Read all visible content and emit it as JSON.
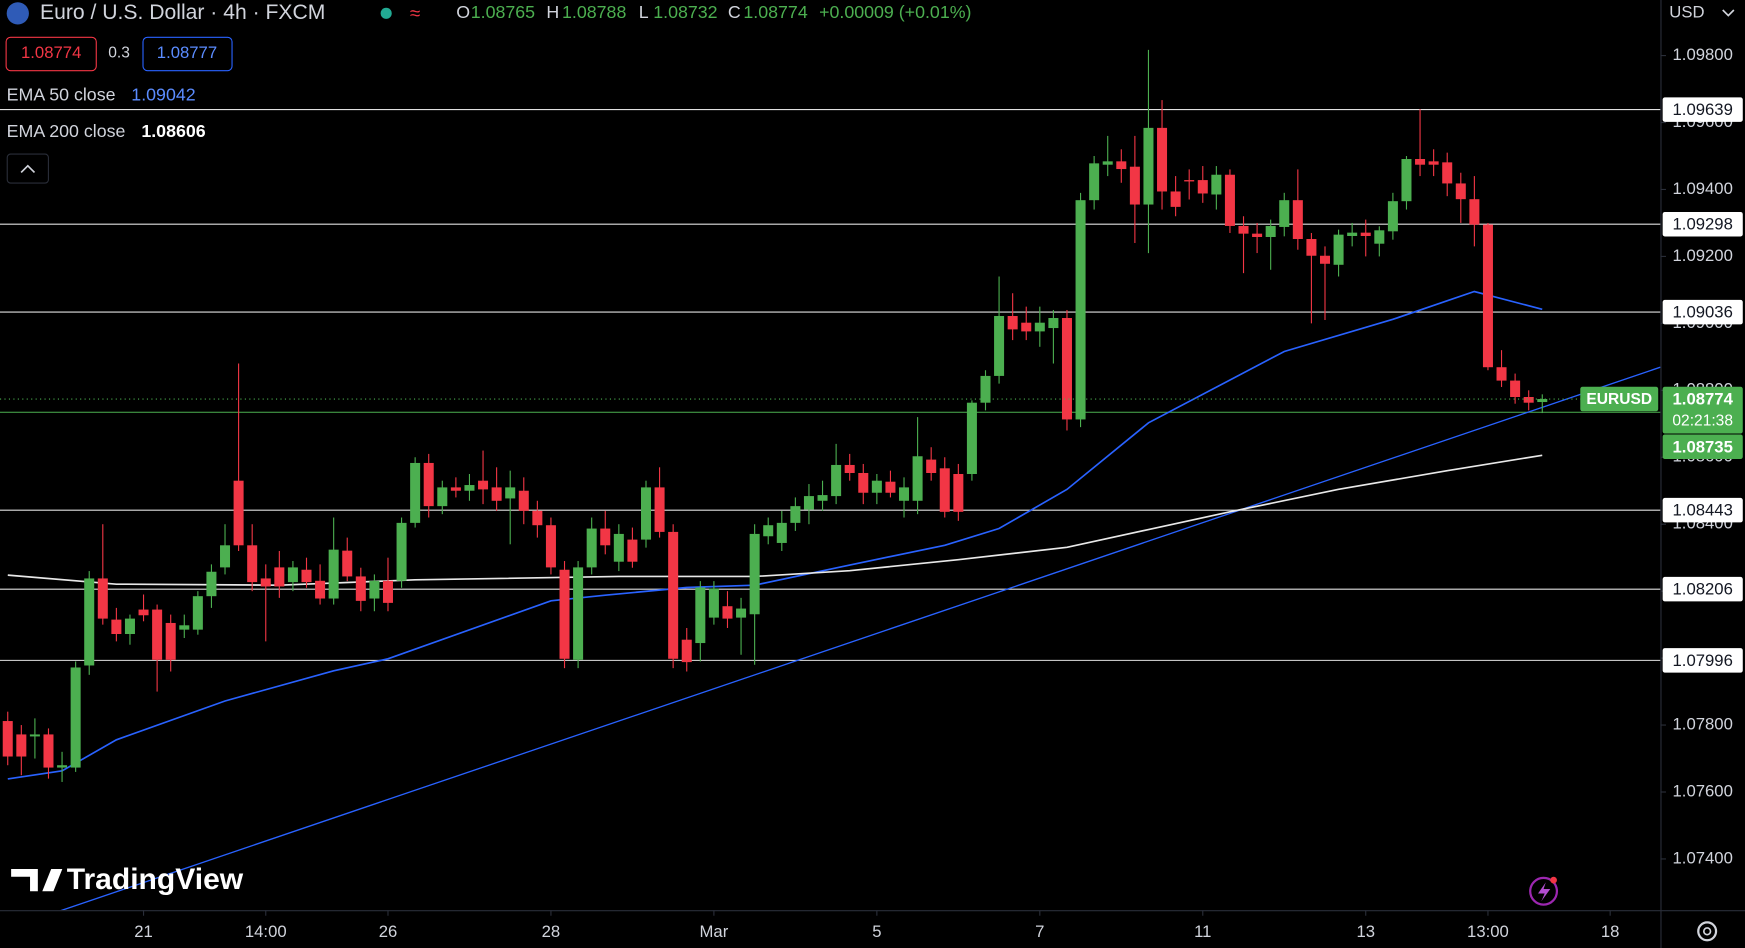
{
  "chart_data": {
    "type": "candlestick",
    "title": "Euro / U.S. Dollar · 4h · FXCM",
    "ohlc_labels": [
      "O",
      "H",
      "L",
      "C"
    ],
    "change": "+0.00009 (+0.01%)",
    "spread": 0.3,
    "ask": 1.08777,
    "currency": "USD",
    "symbol": "EURUSD",
    "countdown": "02:21:38",
    "brand": "TradingView",
    "up_color": "#4caf50",
    "down_color": "#f23645",
    "candles": [
      [
        1.07812,
        1.0784,
        1.0768,
        1.07706
      ],
      [
        1.07772,
        1.078,
        1.0765,
        1.07706
      ],
      [
        1.07766,
        1.0782,
        1.077,
        1.07772
      ],
      [
        1.07772,
        1.0779,
        1.0764,
        1.07673
      ],
      [
        1.07673,
        1.0772,
        1.0763,
        1.0768
      ],
      [
        1.07673,
        1.0799,
        1.0766,
        1.07972
      ],
      [
        1.07978,
        1.0826,
        1.0795,
        1.08238
      ],
      [
        1.08238,
        1.084,
        1.081,
        1.08118
      ],
      [
        1.08115,
        1.0815,
        1.0805,
        1.08072
      ],
      [
        1.08072,
        1.0813,
        1.0804,
        1.08118
      ],
      [
        1.08145,
        1.0819,
        1.0811,
        1.08128
      ],
      [
        1.08145,
        1.0816,
        1.079,
        1.07995
      ],
      [
        1.08105,
        1.0813,
        1.0796,
        1.07995
      ],
      [
        1.08085,
        1.0813,
        1.0806,
        1.08098
      ],
      [
        1.08085,
        1.082,
        1.0807,
        1.08185
      ],
      [
        1.08185,
        1.0828,
        1.0815,
        1.08258
      ],
      [
        1.08271,
        1.084,
        1.0825,
        1.08337
      ],
      [
        1.0853,
        1.0888,
        1.0832,
        1.08337
      ],
      [
        1.08337,
        1.084,
        1.082,
        1.08227
      ],
      [
        1.08238,
        1.0828,
        1.0805,
        1.08214
      ],
      [
        1.08271,
        1.0832,
        1.0818,
        1.08214
      ],
      [
        1.08227,
        1.0829,
        1.082,
        1.08271
      ],
      [
        1.08264,
        1.083,
        1.0821,
        1.08227
      ],
      [
        1.08231,
        1.0828,
        1.0816,
        1.08178
      ],
      [
        1.08178,
        1.0842,
        1.0816,
        1.08324
      ],
      [
        1.08321,
        1.0836,
        1.0823,
        1.08244
      ],
      [
        1.08244,
        1.0827,
        1.0814,
        1.08171
      ],
      [
        1.08178,
        1.0825,
        1.0814,
        1.08231
      ],
      [
        1.08231,
        1.083,
        1.0814,
        1.08165
      ],
      [
        1.08231,
        1.0842,
        1.0821,
        1.08404
      ],
      [
        1.08404,
        1.086,
        1.0839,
        1.08583
      ],
      [
        1.08583,
        1.0861,
        1.0842,
        1.08454
      ],
      [
        1.08454,
        1.0853,
        1.0843,
        1.0851
      ],
      [
        1.0851,
        1.0854,
        1.0848,
        1.085
      ],
      [
        1.085,
        1.0855,
        1.0847,
        1.08517
      ],
      [
        1.0853,
        1.0862,
        1.0846,
        1.08504
      ],
      [
        1.0851,
        1.0857,
        1.0844,
        1.0847
      ],
      [
        1.08477,
        1.0856,
        1.0834,
        1.0851
      ],
      [
        1.085,
        1.0854,
        1.084,
        1.0844
      ],
      [
        1.0844,
        1.0847,
        1.0836,
        1.08397
      ],
      [
        1.08397,
        1.0842,
        1.0825,
        1.08271
      ],
      [
        1.08264,
        1.0829,
        1.0797,
        1.07998
      ],
      [
        1.07995,
        1.0829,
        1.0797,
        1.08271
      ],
      [
        1.08271,
        1.0842,
        1.0825,
        1.08387
      ],
      [
        1.08387,
        1.0844,
        1.0831,
        1.08337
      ],
      [
        1.08288,
        1.084,
        1.0826,
        1.08371
      ],
      [
        1.08354,
        1.0839,
        1.0827,
        1.08288
      ],
      [
        1.08354,
        1.0853,
        1.0833,
        1.0851
      ],
      [
        1.0851,
        1.0857,
        1.0836,
        1.08377
      ],
      [
        1.08377,
        1.084,
        1.0797,
        1.07998
      ],
      [
        1.08055,
        1.0809,
        1.0796,
        1.07988
      ],
      [
        1.08045,
        1.0823,
        1.0799,
        1.08211
      ],
      [
        1.08121,
        1.0823,
        1.081,
        1.08208
      ],
      [
        1.08155,
        1.082,
        1.0809,
        1.08118
      ],
      [
        1.08121,
        1.0818,
        1.0801,
        1.08148
      ],
      [
        1.08131,
        1.084,
        1.0798,
        1.08371
      ],
      [
        1.08364,
        1.0842,
        1.0834,
        1.08397
      ],
      [
        1.08344,
        1.0844,
        1.0832,
        1.08404
      ],
      [
        1.08404,
        1.0848,
        1.0838,
        1.08454
      ],
      [
        1.08444,
        1.0852,
        1.084,
        1.08484
      ],
      [
        1.0847,
        1.0853,
        1.0844,
        1.08487
      ],
      [
        1.08484,
        1.0864,
        1.0846,
        1.08577
      ],
      [
        1.08577,
        1.0861,
        1.0853,
        1.08553
      ],
      [
        1.08553,
        1.0858,
        1.0846,
        1.08494
      ],
      [
        1.08494,
        1.0855,
        1.0846,
        1.0853
      ],
      [
        1.08527,
        1.0856,
        1.0848,
        1.08494
      ],
      [
        1.0847,
        1.0854,
        1.0842,
        1.0851
      ],
      [
        1.0847,
        1.0872,
        1.0843,
        1.08603
      ],
      [
        1.08593,
        1.0863,
        1.0853,
        1.08553
      ],
      [
        1.08567,
        1.086,
        1.0842,
        1.08437
      ],
      [
        1.0855,
        1.0858,
        1.0841,
        1.08437
      ],
      [
        1.0855,
        1.0877,
        1.0853,
        1.08763
      ],
      [
        1.08763,
        1.0886,
        1.0874,
        1.08843
      ],
      [
        1.08843,
        1.0914,
        1.0882,
        1.09022
      ],
      [
        1.09022,
        1.0909,
        1.0895,
        1.08982
      ],
      [
        1.09002,
        1.0905,
        1.0895,
        1.08976
      ],
      [
        1.08976,
        1.0905,
        1.0893,
        1.09002
      ],
      [
        1.08986,
        1.0904,
        1.0888,
        1.09016
      ],
      [
        1.09016,
        1.0904,
        1.0868,
        1.08713
      ],
      [
        1.08713,
        1.0939,
        1.0869,
        1.09368
      ],
      [
        1.09368,
        1.095,
        1.0934,
        1.09478
      ],
      [
        1.09474,
        1.0956,
        1.0944,
        1.09484
      ],
      [
        1.09484,
        1.0952,
        1.0942,
        1.09461
      ],
      [
        1.09468,
        1.0956,
        1.0924,
        1.09355
      ],
      [
        1.09355,
        1.09817,
        1.0921,
        1.09584
      ],
      [
        1.09584,
        1.09667,
        1.0934,
        1.09394
      ],
      [
        1.09394,
        1.0944,
        1.0932,
        1.09348
      ],
      [
        1.09428,
        1.0946,
        1.0937,
        1.09424
      ],
      [
        1.09428,
        1.0947,
        1.0936,
        1.09388
      ],
      [
        1.09385,
        1.0947,
        1.0934,
        1.09444
      ],
      [
        1.09444,
        1.0946,
        1.0927,
        1.09291
      ],
      [
        1.09291,
        1.0932,
        1.0915,
        1.09268
      ],
      [
        1.09268,
        1.093,
        1.0921,
        1.09258
      ],
      [
        1.09258,
        1.0931,
        1.0916,
        1.09291
      ],
      [
        1.09288,
        1.0939,
        1.0926,
        1.09368
      ],
      [
        1.09368,
        1.0946,
        1.0922,
        1.09252
      ],
      [
        1.09252,
        1.0927,
        1.09,
        1.09202
      ],
      [
        1.09202,
        1.0923,
        1.0901,
        1.09178
      ],
      [
        1.09175,
        1.0928,
        1.0914,
        1.09265
      ],
      [
        1.09261,
        1.093,
        1.0923,
        1.09271
      ],
      [
        1.09271,
        1.0931,
        1.092,
        1.09261
      ],
      [
        1.09238,
        1.0929,
        1.092,
        1.09278
      ],
      [
        1.09275,
        1.0939,
        1.0925,
        1.09365
      ],
      [
        1.09365,
        1.095,
        1.0934,
        1.09491
      ],
      [
        1.09491,
        1.0964,
        1.0944,
        1.09474
      ],
      [
        1.09484,
        1.0952,
        1.0944,
        1.09474
      ],
      [
        1.09481,
        1.0951,
        1.0938,
        1.09418
      ],
      [
        1.09418,
        1.0945,
        1.093,
        1.09371
      ],
      [
        1.09371,
        1.0944,
        1.0923,
        1.09295
      ],
      [
        1.09295,
        1.093,
        1.0886,
        1.08869
      ],
      [
        1.08869,
        1.0892,
        1.0881,
        1.08829
      ],
      [
        1.08829,
        1.0885,
        1.0876,
        1.0878
      ],
      [
        1.0878,
        1.088,
        1.0874,
        1.08763
      ],
      [
        1.08765,
        1.08788,
        1.08732,
        1.08774
      ]
    ],
    "series": [
      {
        "name": "EMA 50 close",
        "color": "#2962ff",
        "x": [
          0,
          4,
          8,
          16,
          24,
          28,
          40,
          44,
          50,
          55,
          62,
          69,
          73,
          78,
          84,
          94,
          102,
          108,
          113
        ],
        "values": [
          1.07639,
          1.07663,
          1.07756,
          1.07872,
          1.07962,
          1.07998,
          1.08171,
          1.08188,
          1.08211,
          1.08218,
          1.08278,
          1.08337,
          1.08387,
          1.08504,
          1.08703,
          1.08916,
          1.09012,
          1.09095,
          1.09042
        ]
      },
      {
        "name": "EMA 200 close",
        "color": "#e8e8e8",
        "x": [
          0,
          8,
          20,
          30,
          45,
          55,
          62,
          70,
          78,
          84,
          90,
          98,
          106,
          113
        ],
        "values": [
          1.08248,
          1.08221,
          1.08218,
          1.08234,
          1.08244,
          1.08244,
          1.08261,
          1.08294,
          1.08331,
          1.08384,
          1.08437,
          1.08504,
          1.0856,
          1.08606
        ]
      }
    ],
    "trendline": {
      "color": "#2962ff",
      "x": [
        3.5,
        121.7
      ],
      "values": [
        1.0724,
        1.08869
      ]
    },
    "levels": [
      1.09639,
      1.09298,
      1.09036,
      1.08443,
      1.08206,
      1.07996
    ],
    "support": 1.08735,
    "xlim": [
      -0.57,
      121.7
    ],
    "ylim": [
      1.07247,
      1.09966
    ],
    "yticks": [
      {
        "value": 1.098,
        "label": "1.09800"
      },
      {
        "value": 1.096,
        "label": "1.09600"
      },
      {
        "value": 1.094,
        "label": "1.09400"
      },
      {
        "value": 1.092,
        "label": "1.09200"
      },
      {
        "value": 1.09,
        "label": "1.09000"
      },
      {
        "value": 1.088,
        "label": "1.08800"
      },
      {
        "value": 1.086,
        "label": "1.08600"
      },
      {
        "value": 1.084,
        "label": "1.08400"
      },
      {
        "value": 1.082,
        "label": "1.08200"
      },
      {
        "value": 1.08,
        "label": "1.08000"
      },
      {
        "value": 1.078,
        "label": "1.07800"
      },
      {
        "value": 1.076,
        "label": "1.07600"
      },
      {
        "value": 1.074,
        "label": "1.07400"
      }
    ],
    "xticks": [
      {
        "value": 10,
        "label": "21"
      },
      {
        "value": 19,
        "label": "14:00"
      },
      {
        "value": 28,
        "label": "26"
      },
      {
        "value": 40,
        "label": "28"
      },
      {
        "value": 52,
        "label": "Mar"
      },
      {
        "value": 64,
        "label": "5"
      },
      {
        "value": 76,
        "label": "7"
      },
      {
        "value": 88,
        "label": "11"
      },
      {
        "value": 100,
        "label": "13"
      },
      {
        "value": 109,
        "label": "13:00"
      },
      {
        "value": 118,
        "label": "18"
      }
    ]
  }
}
